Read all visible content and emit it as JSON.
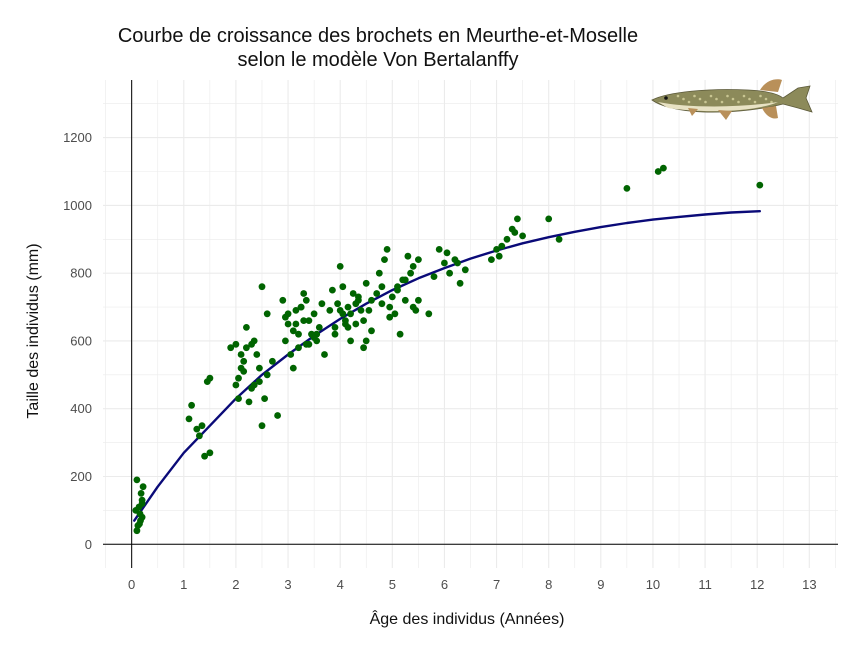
{
  "chart_data": {
    "type": "scatter",
    "title_line1": "Courbe de croissance des brochets en Meurthe-et-Moselle",
    "title_line2": "selon le modèle Von Bertalanffy",
    "xlabel": "Âge des individus (Années)",
    "ylabel": "Taille des individus (mm)",
    "xlim": [
      -0.55,
      13.55
    ],
    "ylim": [
      -70,
      1370
    ],
    "xticks": [
      0,
      1,
      2,
      3,
      4,
      5,
      6,
      7,
      8,
      9,
      10,
      11,
      12,
      13
    ],
    "yticks": [
      0,
      200,
      400,
      600,
      800,
      1000,
      1200
    ],
    "grid": true,
    "icon": "pike-fish-image",
    "colors": {
      "points": "#006400",
      "curve": "#0a0a78",
      "grid": "#ebebeb",
      "axis": "#000000"
    },
    "series": [
      {
        "type": "scatter",
        "x": [
          0.1,
          0.12,
          0.15,
          0.17,
          0.2,
          0.08,
          0.14,
          0.2,
          0.18,
          0.22,
          0.1,
          0.16,
          0.2,
          1.15,
          1.3,
          1.35,
          1.45,
          1.5,
          1.5,
          1.1,
          1.25,
          1.4,
          1.9,
          2.0,
          2.05,
          2.1,
          2.15,
          2.2,
          2.25,
          2.3,
          2.35,
          2.4,
          2.45,
          2.5,
          2.55,
          2.6,
          2.7,
          2.8,
          2.05,
          2.2,
          2.35,
          2.5,
          2.15,
          2.3,
          2.45,
          2.6,
          2.0,
          2.1,
          2.9,
          2.95,
          3.0,
          3.05,
          3.1,
          3.15,
          3.2,
          3.25,
          3.3,
          3.35,
          3.4,
          3.45,
          3.5,
          3.55,
          3.6,
          3.65,
          3.7,
          2.95,
          3.1,
          3.25,
          3.4,
          3.55,
          3.0,
          3.2,
          3.35,
          3.5,
          3.15,
          3.3,
          3.8,
          3.85,
          3.9,
          3.95,
          4.0,
          4.05,
          4.1,
          4.15,
          4.2,
          4.25,
          4.3,
          4.35,
          4.4,
          4.45,
          4.5,
          4.55,
          4.6,
          3.9,
          4.05,
          4.2,
          4.35,
          4.5,
          4.0,
          4.15,
          4.3,
          4.45,
          4.6,
          4.1,
          4.7,
          4.75,
          4.8,
          4.85,
          4.9,
          4.95,
          5.0,
          5.05,
          5.1,
          5.15,
          5.2,
          5.25,
          5.3,
          5.35,
          5.4,
          5.45,
          5.5,
          4.8,
          4.95,
          5.1,
          5.25,
          5.4,
          5.5,
          5.7,
          5.8,
          5.9,
          6.0,
          6.1,
          6.2,
          6.3,
          6.4,
          6.05,
          6.25,
          6.9,
          7.0,
          7.1,
          7.2,
          7.3,
          7.4,
          7.5,
          7.05,
          7.35,
          8.0,
          8.2,
          9.5,
          10.1,
          10.2,
          12.05
        ],
        "y": [
          40,
          55,
          60,
          70,
          80,
          100,
          110,
          130,
          150,
          170,
          190,
          90,
          120,
          410,
          320,
          350,
          480,
          270,
          490,
          370,
          340,
          260,
          580,
          470,
          430,
          520,
          540,
          640,
          420,
          590,
          470,
          560,
          520,
          350,
          430,
          500,
          540,
          380,
          490,
          580,
          600,
          760,
          510,
          460,
          480,
          680,
          590,
          560,
          720,
          600,
          680,
          560,
          520,
          650,
          620,
          700,
          740,
          590,
          660,
          620,
          680,
          600,
          640,
          710,
          560,
          670,
          630,
          700,
          590,
          620,
          650,
          580,
          720,
          610,
          690,
          660,
          690,
          750,
          640,
          710,
          820,
          680,
          660,
          700,
          600,
          740,
          650,
          720,
          690,
          580,
          770,
          690,
          630,
          620,
          760,
          680,
          730,
          600,
          690,
          640,
          710,
          660,
          720,
          650,
          740,
          800,
          760,
          840,
          870,
          700,
          730,
          680,
          760,
          620,
          780,
          720,
          850,
          800,
          820,
          690,
          840,
          710,
          670,
          750,
          780,
          700,
          720,
          680,
          790,
          870,
          830,
          800,
          840,
          770,
          810,
          860,
          830,
          840,
          870,
          880,
          900,
          930,
          960,
          910,
          850,
          920,
          960,
          900,
          1050,
          1100,
          1110,
          1060
        ]
      },
      {
        "type": "line",
        "name": "",
        "x": [
          0.05,
          0.5,
          1,
          1.5,
          2,
          2.5,
          3,
          3.5,
          4,
          4.5,
          5,
          5.5,
          6,
          6.5,
          7,
          7.5,
          8,
          8.5,
          9,
          9.5,
          10,
          10.5,
          11,
          11.5,
          12.05
        ],
        "y": [
          70,
          170,
          270,
          350,
          430,
          500,
          560,
          615,
          665,
          710,
          750,
          785,
          815,
          843,
          867,
          888,
          906,
          922,
          936,
          948,
          958,
          966,
          973,
          979,
          983
        ]
      }
    ]
  }
}
